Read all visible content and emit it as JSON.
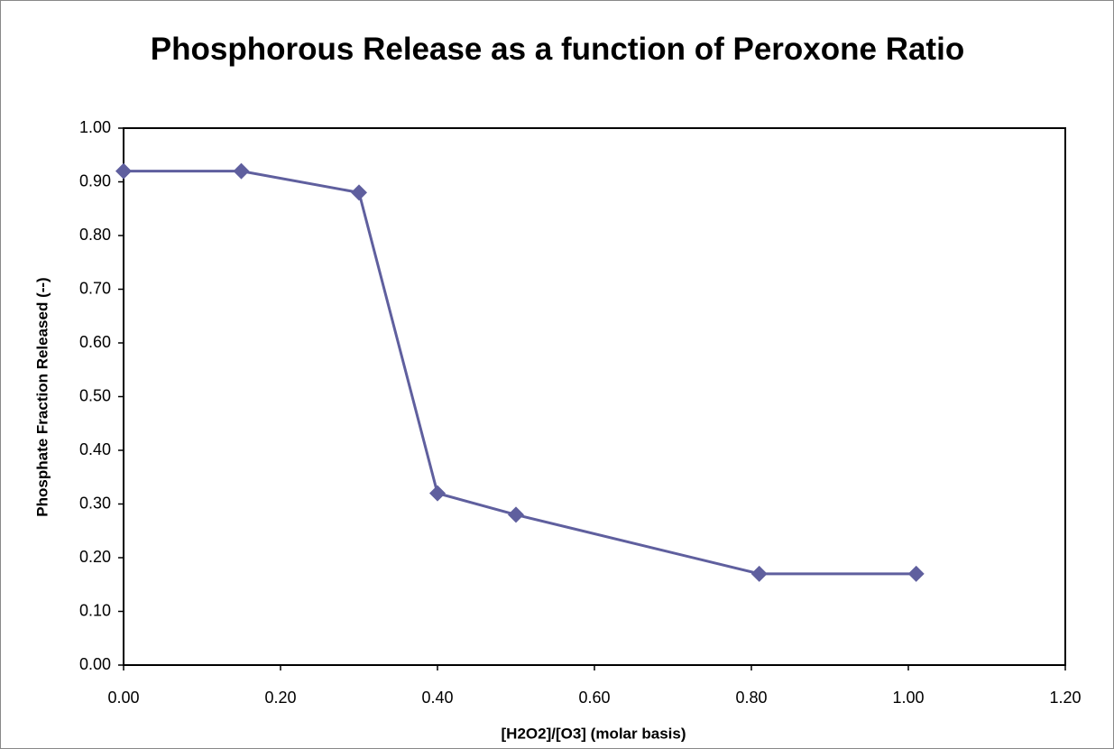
{
  "chart_data": {
    "type": "line",
    "title": "Phosphorous Release as a function of Peroxone Ratio",
    "x_label": "[H2O2]/[O3] (molar basis)",
    "y_label": "Phosphate Fraction Released (--)",
    "x": [
      0.0,
      0.15,
      0.3,
      0.4,
      0.5,
      0.81,
      1.01
    ],
    "values": [
      0.92,
      0.92,
      0.88,
      0.32,
      0.28,
      0.17,
      0.17
    ],
    "color": "#5f5f9e",
    "xlim": [
      0,
      1.2
    ],
    "xticks": [
      {
        "value": 0,
        "label": "0.00"
      },
      {
        "value": 0.2,
        "label": "0.20"
      },
      {
        "value": 0.4,
        "label": "0.40"
      },
      {
        "value": 0.6,
        "label": "0.60"
      },
      {
        "value": 0.8,
        "label": "0.80"
      },
      {
        "value": 1,
        "label": "1.00"
      },
      {
        "value": 1.2,
        "label": "1.20"
      }
    ],
    "ylim": [
      0,
      1
    ],
    "yticks": [
      {
        "value": 0,
        "label": "0.00"
      },
      {
        "value": 0.1,
        "label": "0.10"
      },
      {
        "value": 0.2,
        "label": "0.20"
      },
      {
        "value": 0.3,
        "label": "0.30"
      },
      {
        "value": 0.4,
        "label": "0.40"
      },
      {
        "value": 0.5,
        "label": "0.50"
      },
      {
        "value": 0.6,
        "label": "0.60"
      },
      {
        "value": 0.7,
        "label": "0.70"
      },
      {
        "value": 0.8,
        "label": "0.80"
      },
      {
        "value": 0.9,
        "label": "0.90"
      },
      {
        "value": 1,
        "label": "1.00"
      }
    ],
    "grid": false
  }
}
